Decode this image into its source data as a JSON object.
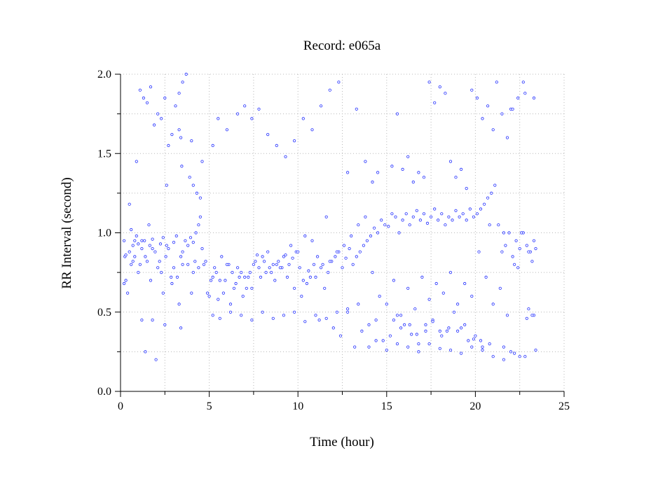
{
  "chart_data": {
    "type": "scatter",
    "title": "Record:  e065a",
    "xlabel": "Time (hour)",
    "ylabel": "RR Interval (second)",
    "xlim": [
      0,
      25
    ],
    "ylim": [
      0.0,
      2.0
    ],
    "x_ticks": [
      0,
      5,
      10,
      15,
      20,
      25
    ],
    "x_tick_labels": [
      "0",
      "5",
      "10",
      "15",
      "20",
      "25"
    ],
    "y_ticks": [
      0.0,
      0.5,
      1.0,
      1.5,
      2.0
    ],
    "y_tick_labels": [
      "0.0",
      "0.5",
      "1.0",
      "1.5",
      "2.0"
    ],
    "grid": true,
    "legend": "none",
    "marker": "open-circle",
    "series_color": "#1f2cff",
    "series": [
      {
        "x": [
          0.2,
          0.3,
          0.4,
          0.5,
          0.6,
          0.7,
          0.8,
          0.9,
          1.0,
          1.1,
          1.2,
          1.35,
          1.5,
          1.65,
          1.8,
          1.95,
          2.1,
          2.25,
          2.4,
          2.55,
          2.7,
          2.85,
          3.0,
          3.15,
          3.3,
          3.4,
          3.5,
          3.65,
          3.8,
          3.95,
          4.1,
          4.25,
          4.4,
          4.5,
          4.7,
          4.9,
          5.1,
          5.3,
          5.5,
          5.7,
          5.9,
          6.1,
          6.3,
          6.5,
          6.7,
          6.9,
          7.1,
          7.3,
          7.5,
          7.7,
          7.9,
          8.1,
          8.3,
          8.5,
          8.7,
          8.9,
          9.1,
          9.3,
          9.5,
          9.7,
          9.9,
          10.1,
          10.3,
          10.5,
          10.7,
          10.9,
          11.1,
          11.3,
          11.5,
          11.7,
          11.9,
          12.1,
          12.3,
          12.5,
          12.7,
          12.9,
          13.1,
          13.3,
          13.5,
          13.7,
          13.9,
          14.1,
          14.3,
          14.5,
          14.7,
          14.9,
          15.1,
          15.3,
          15.5,
          15.7,
          15.9,
          16.1,
          16.3,
          16.5,
          16.7,
          16.9,
          17.1,
          17.3,
          17.5,
          17.7,
          17.9,
          18.1,
          18.3,
          18.5,
          18.7,
          18.9,
          19.1,
          19.3,
          19.5,
          19.7,
          19.9,
          20.1,
          20.3,
          20.5,
          20.7,
          20.9,
          21.1,
          21.3,
          21.5,
          21.7,
          21.9,
          22.1,
          22.3,
          22.5,
          22.7,
          22.9,
          23.1,
          23.3,
          0.25,
          0.6,
          1.0,
          1.4,
          1.8,
          2.2,
          2.6,
          3.0,
          3.4,
          3.8,
          4.2,
          4.6,
          5.0,
          5.4,
          5.8,
          6.2,
          6.6,
          7.0,
          7.4,
          7.8,
          8.2,
          8.6,
          9.0,
          9.4,
          9.8,
          10.2,
          10.6,
          11.0,
          11.4,
          11.8,
          12.2,
          12.6,
          13.0,
          13.4,
          13.8,
          14.2,
          14.6,
          15.0,
          15.4,
          15.8,
          16.2,
          16.6,
          17.0,
          17.4,
          17.8,
          18.2,
          18.6,
          19.0,
          19.4,
          19.8,
          20.2,
          20.6,
          21.0,
          21.4,
          21.8,
          22.2,
          22.6,
          23.0,
          23.4,
          0.3,
          0.7,
          1.2,
          1.7,
          2.3,
          2.9,
          3.5,
          4.1,
          4.8,
          5.6,
          6.4,
          7.2,
          8.0,
          8.8,
          9.6,
          10.4,
          11.2,
          12.0,
          12.8,
          13.6,
          14.4,
          15.2,
          16.0,
          16.8,
          17.6,
          18.4,
          19.2,
          20.0,
          20.8,
          21.6,
          22.4,
          23.2,
          0.2,
          0.8,
          1.6,
          2.4,
          3.2,
          4.0,
          4.4,
          5.2,
          6.0,
          6.8,
          7.6,
          8.4,
          9.2,
          10.0,
          10.8,
          11.6,
          12.4,
          13.2,
          14.0,
          14.8,
          15.6,
          16.4,
          17.2,
          18.0,
          18.8,
          19.6,
          20.4,
          21.2,
          22.0,
          22.8,
          23.3,
          1.1,
          1.3,
          1.5,
          1.7,
          1.9,
          2.1,
          2.3,
          2.5,
          2.7,
          2.9,
          3.1,
          3.3,
          3.5,
          3.7,
          3.9,
          4.1,
          4.3,
          4.5,
          0.5,
          0.9,
          1.4,
          2.0,
          2.6,
          3.3,
          3.4,
          3.45,
          4.0,
          4.6,
          5.2,
          5.5,
          6.0,
          6.6,
          7.0,
          7.4,
          7.8,
          8.3,
          8.8,
          9.3,
          9.8,
          10.3,
          10.8,
          11.3,
          11.8,
          12.3,
          12.8,
          13.3,
          13.8,
          14.2,
          14.5,
          15.3,
          15.6,
          15.9,
          16.2,
          16.5,
          16.8,
          17.1,
          17.4,
          17.7,
          18.0,
          18.3,
          18.6,
          18.9,
          19.2,
          19.5,
          19.8,
          20.1,
          20.4,
          20.7,
          21.0,
          21.5,
          21.8,
          22.1,
          22.4,
          22.7,
          23.0,
          23.3,
          15.4,
          15.8,
          16.3,
          16.7,
          17.2,
          17.6,
          18.1,
          18.5,
          19.0,
          19.4,
          19.9,
          20.3,
          20.8,
          21.6,
          22.0,
          22.5,
          22.9,
          23.2,
          1.2,
          1.8,
          2.5,
          5.2,
          5.6,
          6.2,
          6.8,
          7.4,
          8.0,
          8.6,
          9.2,
          9.8,
          10.4,
          11.0,
          11.6,
          12.2,
          12.8,
          13.4,
          14.0,
          14.4,
          15.0,
          15.6,
          16.2,
          16.8,
          17.4,
          18.0,
          18.6,
          19.2,
          19.8,
          20.4,
          21.0,
          21.6,
          22.2,
          22.8,
          23.4
        ],
        "y": [
          0.95,
          0.7,
          0.62,
          0.88,
          1.02,
          0.92,
          0.85,
          0.98,
          0.93,
          0.8,
          0.9,
          0.95,
          0.82,
          0.92,
          0.96,
          0.88,
          0.78,
          0.93,
          0.97,
          0.85,
          0.9,
          0.72,
          0.94,
          0.98,
          0.55,
          0.4,
          0.88,
          0.95,
          0.92,
          0.97,
          0.94,
          1.0,
          1.05,
          1.1,
          0.8,
          0.62,
          0.7,
          0.78,
          0.58,
          0.85,
          0.7,
          0.8,
          0.75,
          0.68,
          0.72,
          0.6,
          0.65,
          0.75,
          0.8,
          0.86,
          0.72,
          0.82,
          0.88,
          0.75,
          0.7,
          0.82,
          0.78,
          0.86,
          0.8,
          0.84,
          0.88,
          0.78,
          0.7,
          0.68,
          0.72,
          0.8,
          0.85,
          0.78,
          0.65,
          0.75,
          0.82,
          0.85,
          0.88,
          0.78,
          0.84,
          0.9,
          0.8,
          0.85,
          0.88,
          0.92,
          0.95,
          0.98,
          1.03,
          1.0,
          1.08,
          1.05,
          1.04,
          1.12,
          1.1,
          1.0,
          1.08,
          1.12,
          1.05,
          1.1,
          1.14,
          1.08,
          1.12,
          1.06,
          1.1,
          1.15,
          1.08,
          1.12,
          1.05,
          1.1,
          1.08,
          1.14,
          1.1,
          1.12,
          1.08,
          1.15,
          1.1,
          1.12,
          1.15,
          1.18,
          1.22,
          1.25,
          1.3,
          1.05,
          0.88,
          0.92,
          1.0,
          0.85,
          0.95,
          0.9,
          1.0,
          0.92,
          0.88,
          0.95,
          0.85,
          0.8,
          0.75,
          0.85,
          0.9,
          0.82,
          0.92,
          0.78,
          0.85,
          0.8,
          0.82,
          0.9,
          0.6,
          0.75,
          0.62,
          0.55,
          0.78,
          0.72,
          0.65,
          0.78,
          0.75,
          0.8,
          0.78,
          0.72,
          0.65,
          0.6,
          0.76,
          0.72,
          0.8,
          0.82,
          0.88,
          0.92,
          0.98,
          1.05,
          1.1,
          0.75,
          0.6,
          0.55,
          0.7,
          0.48,
          0.65,
          0.52,
          0.72,
          0.58,
          0.68,
          0.62,
          0.75,
          0.55,
          0.68,
          0.6,
          0.88,
          0.72,
          0.55,
          0.65,
          0.48,
          0.8,
          1.0,
          0.88,
          0.9,
          0.86,
          0.82,
          0.95,
          0.7,
          0.75,
          0.68,
          0.8,
          0.75,
          0.82,
          0.7,
          0.65,
          0.72,
          0.85,
          0.8,
          0.92,
          0.98,
          0.45,
          0.4,
          0.5,
          0.38,
          0.45,
          0.35,
          0.42,
          0.3,
          0.45,
          0.38,
          0.4,
          0.35,
          1.05,
          1.0,
          0.78,
          0.82,
          0.68,
          0.95,
          1.05,
          0.62,
          0.72,
          0.62,
          0.78,
          0.72,
          0.8,
          0.75,
          0.82,
          0.78,
          0.85,
          0.88,
          0.95,
          1.1,
          0.35,
          0.28,
          0.42,
          0.32,
          0.48,
          0.36,
          0.42,
          0.38,
          0.5,
          0.32,
          0.28,
          1.95,
          1.78,
          1.88,
          1.85,
          1.9,
          1.85,
          1.82,
          1.92,
          1.68,
          1.75,
          1.72,
          1.85,
          1.55,
          1.62,
          1.8,
          1.88,
          1.95,
          2.0,
          1.35,
          1.3,
          1.25,
          1.22,
          1.18,
          1.45,
          0.25,
          0.2,
          1.3,
          1.65,
          1.6,
          1.42,
          1.58,
          1.45,
          1.55,
          1.72,
          1.65,
          1.75,
          1.8,
          1.72,
          1.78,
          1.62,
          1.55,
          1.48,
          1.58,
          1.72,
          1.65,
          1.8,
          1.9,
          1.95,
          1.38,
          1.78,
          1.45,
          1.32,
          1.38,
          1.42,
          1.75,
          1.4,
          1.48,
          1.32,
          1.38,
          1.35,
          1.95,
          1.82,
          1.92,
          1.88,
          1.45,
          1.35,
          1.4,
          1.28,
          1.9,
          1.85,
          1.72,
          1.8,
          1.65,
          1.75,
          1.6,
          1.78,
          1.85,
          1.95,
          0.52,
          0.48,
          0.45,
          0.4,
          0.42,
          0.36,
          0.38,
          0.44,
          0.35,
          0.4,
          0.38,
          0.42,
          0.33,
          0.32,
          0.3,
          0.28,
          0.25,
          0.22,
          0.46,
          0.48,
          0.45,
          0.45,
          0.42,
          0.48,
          0.46,
          0.5,
          0.48,
          0.45,
          0.5,
          0.46,
          0.48,
          0.5,
          0.44,
          0.48,
          0.46,
          0.5,
          0.52,
          0.55,
          0.28,
          0.32,
          0.26,
          0.3,
          0.28,
          0.25,
          0.3,
          0.27,
          0.26,
          0.24,
          0.28,
          0.26,
          0.22,
          0.2,
          0.24,
          0.22,
          0.26
        ]
      }
    ]
  }
}
